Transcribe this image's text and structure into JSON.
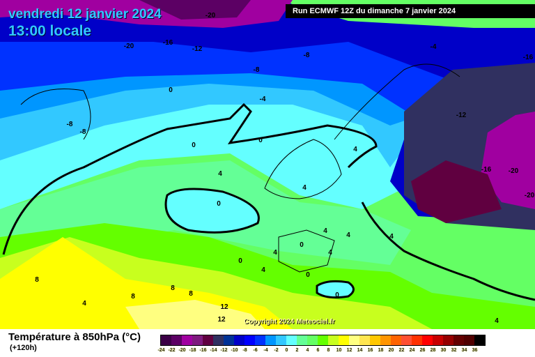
{
  "header": {
    "date": "vendredi 12 janvier 2024",
    "time": "13:00 locale",
    "run": "Run ECMWF 12Z du dimanche 7 janvier 2024"
  },
  "copyright": "Copyright 2024 Meteociel.fr",
  "footer": {
    "title": "Température à 850hPa (°C)",
    "subtitle": "(+120h)"
  },
  "legend": {
    "labels": [
      "-24",
      "-22",
      "-20",
      "-18",
      "-16",
      "-14",
      "-12",
      "-10",
      "-8",
      "-6",
      "-4",
      "-2",
      "0",
      "2",
      "4",
      "6",
      "8",
      "10",
      "12",
      "14",
      "16",
      "18",
      "20",
      "22",
      "24",
      "26",
      "28",
      "30",
      "32",
      "34",
      "36"
    ],
    "colors": [
      "#3c0046",
      "#5c0064",
      "#a000a0",
      "#7e1a7e",
      "#600040",
      "#303060",
      "#003296",
      "#0000c8",
      "#0000ff",
      "#0032ff",
      "#0096ff",
      "#32c8ff",
      "#64ffff",
      "#64ff96",
      "#64ff64",
      "#64ff00",
      "#c8ff1e",
      "#ffff00",
      "#ffff80",
      "#ffe650",
      "#ffc800",
      "#ff9600",
      "#ff6400",
      "#ff5032",
      "#ff3200",
      "#ff0000",
      "#c80000",
      "#960000",
      "#640000",
      "#500000",
      "#000000"
    ]
  },
  "contour_labels": [
    "-20",
    "-20",
    "-16",
    "-12",
    "-8",
    "-8",
    "-4",
    "-16",
    "0",
    "-4",
    "-8",
    "-8",
    "-12",
    "0",
    "0",
    "4",
    "4",
    "-16",
    "-20",
    "4",
    "-20",
    "0",
    "4",
    "4",
    "0",
    "4",
    "4",
    "0",
    "4",
    "4",
    "0",
    "0",
    "8",
    "8",
    "8",
    "8",
    "4",
    "12",
    "12",
    "4"
  ]
}
